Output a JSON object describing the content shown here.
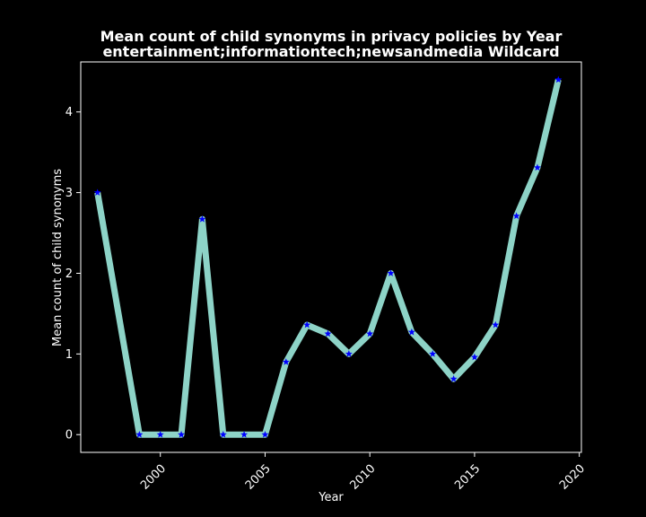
{
  "chart_data": {
    "type": "line",
    "title_line1": "Mean count of child synonyms in privacy policies by Year",
    "title_line2": "entertainment;informationtech;newsandmedia Wildcard",
    "xlabel": "Year",
    "ylabel": "Mean count of child synonyms",
    "xlim": [
      1996.2,
      2020.1
    ],
    "ylim": [
      -0.22,
      4.62
    ],
    "x_ticks": [
      2000,
      2005,
      2010,
      2015,
      2020
    ],
    "y_ticks": [
      0,
      1,
      2,
      3,
      4
    ],
    "grid": false,
    "line_color": "#8dd3c7",
    "marker_color": "#0000ff",
    "marker": "star",
    "background": "#000000",
    "series": [
      {
        "x": [
          1997,
          1999,
          2000,
          2001,
          2002,
          2003,
          2004,
          2005,
          2006,
          2007,
          2008,
          2009,
          2010,
          2011,
          2012,
          2013,
          2014,
          2015,
          2016,
          2017,
          2018,
          2019
        ],
        "values": [
          3.0,
          0,
          0,
          0,
          2.67,
          0,
          0,
          0,
          0.9,
          1.36,
          1.25,
          1.0,
          1.25,
          2.0,
          1.27,
          1.0,
          0.69,
          0.96,
          1.36,
          2.71,
          3.31,
          4.4
        ]
      }
    ]
  }
}
